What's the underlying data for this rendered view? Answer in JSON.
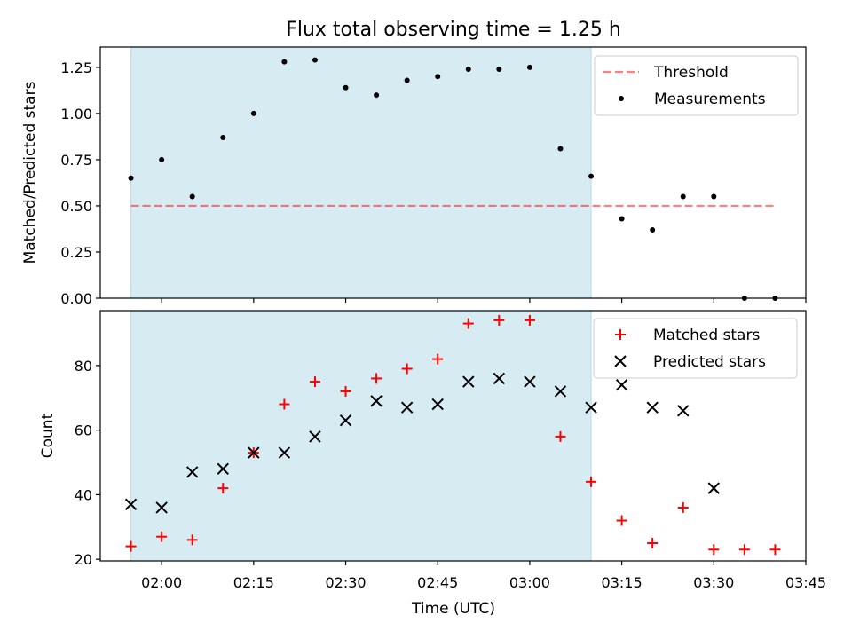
{
  "title": "Flux total observing time = 1.25 h",
  "colors": {
    "shade": "#add8e6",
    "threshold": "#ff0000",
    "measurement": "#000000",
    "matched": "#ff0000",
    "predicted": "#000000"
  },
  "x_axis": {
    "label": "Time (UTC)",
    "tick_labels": [
      "02:00",
      "02:15",
      "02:30",
      "02:45",
      "03:00",
      "03:15",
      "03:30",
      "03:45"
    ]
  },
  "chart_data": [
    {
      "type": "scatter",
      "ylabel": "Matched/Predicted stars",
      "xlim": [
        "01:50",
        "03:45"
      ],
      "ylim": [
        0,
        1.36
      ],
      "y_ticks": [
        "0.00",
        "0.25",
        "0.50",
        "0.75",
        "1.00",
        "1.25"
      ],
      "shaded_span": [
        "01:55",
        "03:10"
      ],
      "threshold": {
        "name": "Threshold",
        "value": 0.5,
        "x_range": [
          "01:55",
          "03:40"
        ]
      },
      "legend_position": "top-right",
      "series": [
        {
          "name": "Measurements",
          "marker": "dot",
          "x": [
            "01:55",
            "02:00",
            "02:05",
            "02:10",
            "02:15",
            "02:20",
            "02:25",
            "02:30",
            "02:35",
            "02:40",
            "02:45",
            "02:50",
            "02:55",
            "03:00",
            "03:05",
            "03:10",
            "03:15",
            "03:20",
            "03:25",
            "03:30",
            "03:35",
            "03:40"
          ],
          "y": [
            0.65,
            0.75,
            0.55,
            0.87,
            1.0,
            1.28,
            1.29,
            1.14,
            1.1,
            1.18,
            1.2,
            1.24,
            1.24,
            1.25,
            0.81,
            0.66,
            0.43,
            0.37,
            0.55,
            0.55,
            0.0,
            0.0
          ]
        }
      ]
    },
    {
      "type": "scatter",
      "ylabel": "Count",
      "xlim": [
        "01:50",
        "03:45"
      ],
      "ylim": [
        19.5,
        97
      ],
      "y_ticks": [
        "20",
        "40",
        "60",
        "80"
      ],
      "shaded_span": [
        "01:55",
        "03:10"
      ],
      "legend_position": "top-right",
      "series": [
        {
          "name": "Matched stars",
          "marker": "plus",
          "x": [
            "01:55",
            "02:00",
            "02:05",
            "02:10",
            "02:15",
            "02:20",
            "02:25",
            "02:30",
            "02:35",
            "02:40",
            "02:45",
            "02:50",
            "02:55",
            "03:00",
            "03:05",
            "03:10",
            "03:15",
            "03:20",
            "03:25",
            "03:30",
            "03:35",
            "03:40"
          ],
          "y": [
            24,
            27,
            26,
            42,
            53,
            68,
            75,
            72,
            76,
            79,
            82,
            93,
            94,
            94,
            58,
            44,
            32,
            25,
            36,
            23,
            23,
            23
          ]
        },
        {
          "name": "Predicted stars",
          "marker": "x",
          "x": [
            "01:55",
            "02:00",
            "02:05",
            "02:10",
            "02:15",
            "02:20",
            "02:25",
            "02:30",
            "02:35",
            "02:40",
            "02:45",
            "02:50",
            "02:55",
            "03:00",
            "03:05",
            "03:10",
            "03:15",
            "03:20",
            "03:25",
            "03:30"
          ],
          "y": [
            37,
            36,
            47,
            48,
            53,
            53,
            58,
            63,
            69,
            67,
            68,
            75,
            76,
            75,
            72,
            67,
            74,
            67,
            66,
            42
          ]
        }
      ]
    }
  ]
}
